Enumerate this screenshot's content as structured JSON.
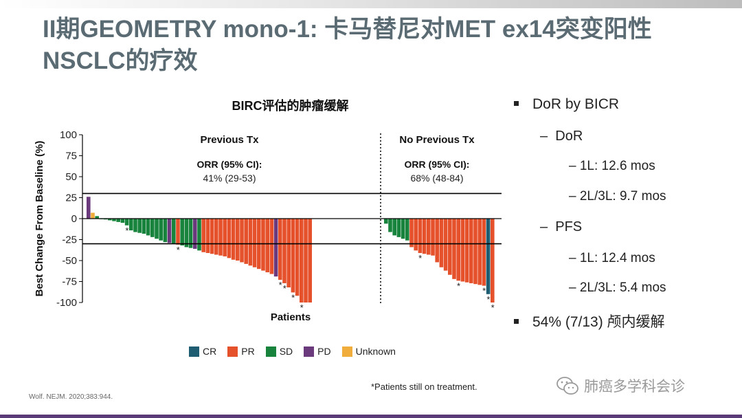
{
  "title": {
    "line1": "II期GEOMETRY mono-1: 卡马替尼对MET ex14突变阳性",
    "line2": "NSCLC的疗效"
  },
  "colors": {
    "title": "#5b6b73",
    "CR": "#1f5d72",
    "PR": "#e4512b",
    "SD": "#17833c",
    "PD": "#6b3a7d",
    "Unknown": "#f0ad3b"
  },
  "chart_data": {
    "type": "bar",
    "title": "BIRC评估的肿瘤缓解",
    "xlabel": "Patients",
    "ylabel": "Best Change From Baseline (%)",
    "ylim": [
      -100,
      100
    ],
    "yticks": [
      100,
      75,
      50,
      25,
      0,
      -25,
      -50,
      -75,
      -100
    ],
    "reference_lines": [
      30,
      -30
    ],
    "legend": [
      "CR",
      "PR",
      "SD",
      "PD",
      "Unknown"
    ],
    "legend_position": "bottom",
    "footnote_marker": "*",
    "groups": [
      {
        "name": "Previous Tx",
        "orr_label": "ORR (95% CI):",
        "orr_value": "41% (29-53)",
        "bars": [
          {
            "value": 26,
            "response": "PD"
          },
          {
            "value": 7,
            "response": "Unknown"
          },
          {
            "value": 3,
            "response": "SD"
          },
          {
            "value": 0,
            "response": "SD"
          },
          {
            "value": -1,
            "response": "SD"
          },
          {
            "value": -2,
            "response": "SD"
          },
          {
            "value": -3,
            "response": "SD"
          },
          {
            "value": -4,
            "response": "SD"
          },
          {
            "value": -5,
            "response": "SD"
          },
          {
            "value": -8,
            "response": "SD",
            "ongoing": true
          },
          {
            "value": -14,
            "response": "SD"
          },
          {
            "value": -16,
            "response": "SD"
          },
          {
            "value": -17,
            "response": "SD"
          },
          {
            "value": -18,
            "response": "SD"
          },
          {
            "value": -20,
            "response": "SD"
          },
          {
            "value": -22,
            "response": "SD"
          },
          {
            "value": -24,
            "response": "SD"
          },
          {
            "value": -26,
            "response": "SD"
          },
          {
            "value": -28,
            "response": "SD"
          },
          {
            "value": -29,
            "response": "PD"
          },
          {
            "value": -30,
            "response": "SD"
          },
          {
            "value": -31,
            "response": "PR",
            "ongoing": true
          },
          {
            "value": -32,
            "response": "SD"
          },
          {
            "value": -34,
            "response": "SD"
          },
          {
            "value": -35,
            "response": "SD"
          },
          {
            "value": -36,
            "response": "PD"
          },
          {
            "value": -38,
            "response": "SD"
          },
          {
            "value": -40,
            "response": "PR"
          },
          {
            "value": -41,
            "response": "PR"
          },
          {
            "value": -42,
            "response": "PR"
          },
          {
            "value": -43,
            "response": "PR"
          },
          {
            "value": -44,
            "response": "PR"
          },
          {
            "value": -45,
            "response": "PR"
          },
          {
            "value": -47,
            "response": "PR"
          },
          {
            "value": -49,
            "response": "PR"
          },
          {
            "value": -50,
            "response": "PR"
          },
          {
            "value": -52,
            "response": "PR"
          },
          {
            "value": -54,
            "response": "PR"
          },
          {
            "value": -56,
            "response": "PR"
          },
          {
            "value": -58,
            "response": "PR"
          },
          {
            "value": -60,
            "response": "PR"
          },
          {
            "value": -62,
            "response": "PR"
          },
          {
            "value": -64,
            "response": "PR"
          },
          {
            "value": -66,
            "response": "PR"
          },
          {
            "value": -69,
            "response": "PD"
          },
          {
            "value": -73,
            "response": "PR",
            "ongoing": true
          },
          {
            "value": -77,
            "response": "PR",
            "ongoing": true
          },
          {
            "value": -82,
            "response": "PR"
          },
          {
            "value": -88,
            "response": "PR",
            "ongoing": true
          },
          {
            "value": -92,
            "response": "PR"
          },
          {
            "value": -100,
            "response": "PR",
            "ongoing": true
          },
          {
            "value": -100,
            "response": "PR"
          },
          {
            "value": -100,
            "response": "PR"
          }
        ]
      },
      {
        "name": "No Previous Tx",
        "orr_label": "ORR (95% CI):",
        "orr_value": "68% (48-84)",
        "bars": [
          {
            "value": -6,
            "response": "SD"
          },
          {
            "value": -16,
            "response": "SD"
          },
          {
            "value": -20,
            "response": "SD"
          },
          {
            "value": -22,
            "response": "SD"
          },
          {
            "value": -24,
            "response": "SD"
          },
          {
            "value": -26,
            "response": "SD"
          },
          {
            "value": -34,
            "response": "PR"
          },
          {
            "value": -38,
            "response": "PR"
          },
          {
            "value": -41,
            "response": "PR",
            "ongoing": true
          },
          {
            "value": -42,
            "response": "PR"
          },
          {
            "value": -43,
            "response": "PR"
          },
          {
            "value": -44,
            "response": "PR"
          },
          {
            "value": -52,
            "response": "PR"
          },
          {
            "value": -58,
            "response": "PR"
          },
          {
            "value": -62,
            "response": "PR"
          },
          {
            "value": -67,
            "response": "PR"
          },
          {
            "value": -72,
            "response": "PR"
          },
          {
            "value": -74,
            "response": "PR",
            "ongoing": true
          },
          {
            "value": -75,
            "response": "PR"
          },
          {
            "value": -76,
            "response": "PR"
          },
          {
            "value": -77,
            "response": "PR"
          },
          {
            "value": -78,
            "response": "PR"
          },
          {
            "value": -79,
            "response": "PR"
          },
          {
            "value": -80,
            "response": "PR",
            "ongoing": true
          },
          {
            "value": -90,
            "response": "CR",
            "ongoing": true
          },
          {
            "value": -100,
            "response": "PR",
            "ongoing": true
          }
        ]
      }
    ]
  },
  "legend_labels": {
    "CR": "CR",
    "PR": "PR",
    "SD": "SD",
    "PD": "PD",
    "Unknown": "Unknown"
  },
  "footnote": "*Patients still on treatment.",
  "citation": "Wolf. NEJM. 2020;383:944.",
  "watermark": "肺癌多学科会诊",
  "bullets": {
    "b1": "DoR by BICR",
    "b1a": "DoR",
    "b1a1": "1L: 12.6 mos",
    "b1a2": "2L/3L: 9.7 mos",
    "b1b": "PFS",
    "b1b1": "1L: 12.4 mos",
    "b1b2": "2L/3L: 5.4 mos",
    "b2": "54% (7/13) 颅内缓解"
  }
}
